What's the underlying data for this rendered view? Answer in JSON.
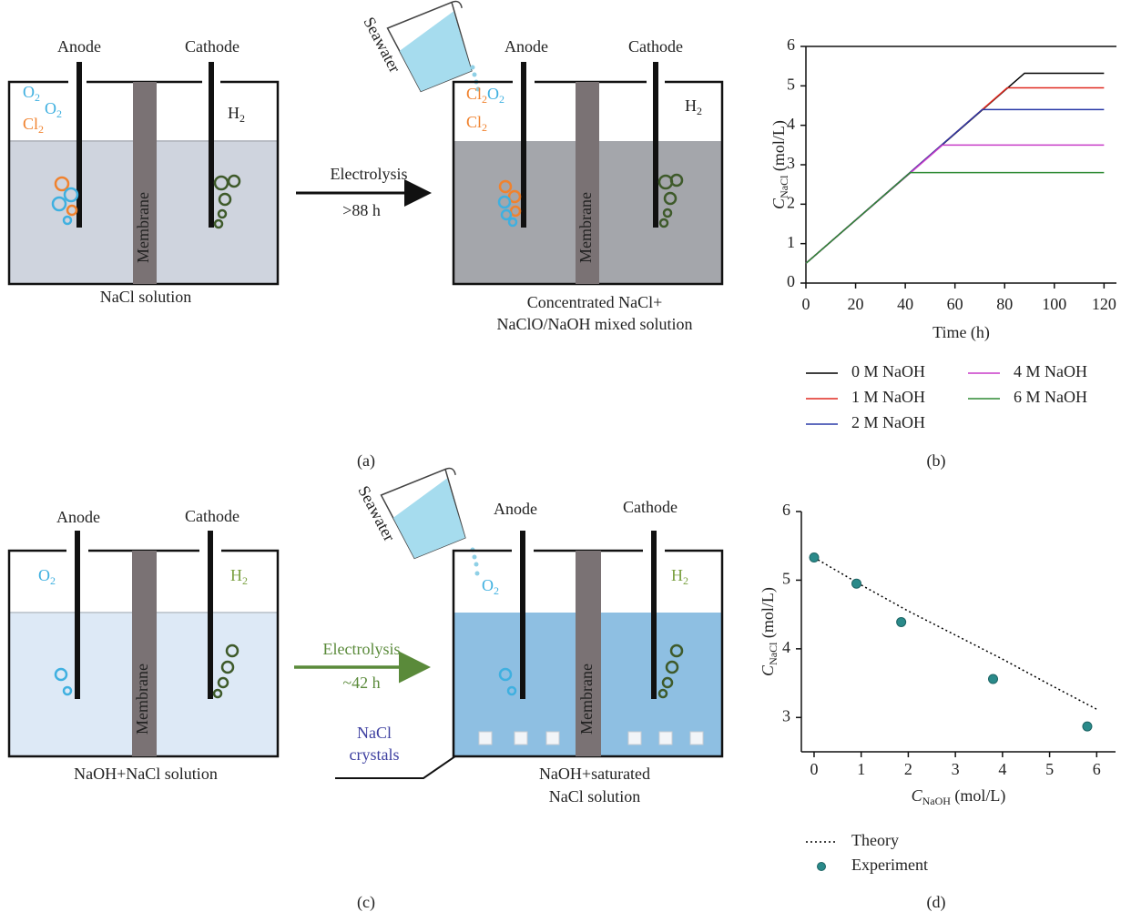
{
  "panel_a": {
    "label": "(a)",
    "cell1": {
      "anode": "Anode",
      "cathode": "Cathode",
      "membrane": "Membrane",
      "o2a": [
        "O",
        "2"
      ],
      "o2b": [
        "O",
        "2"
      ],
      "cl2": [
        "Cl",
        "2"
      ],
      "h2": [
        "H",
        "2"
      ],
      "caption": "NaCl solution"
    },
    "arrow": {
      "top": "Electrolysis",
      "bottom": ">88 h"
    },
    "pitcher": "Seawater",
    "cell2": {
      "anode": "Anode",
      "cathode": "Cathode",
      "membrane": "Membrane",
      "cl2a": [
        "Cl",
        "2"
      ],
      "o2": [
        "O",
        "2"
      ],
      "cl2b": [
        "Cl",
        "2"
      ],
      "h2": [
        "H",
        "2"
      ],
      "caption": [
        "Concentrated NaCl+",
        "NaClO/NaOH mixed solution"
      ]
    }
  },
  "panel_c": {
    "label": "(c)",
    "cell1": {
      "anode": "Anode",
      "cathode": "Cathode",
      "membrane": "Membrane",
      "o2": [
        "O",
        "2"
      ],
      "h2": [
        "H",
        "2"
      ],
      "caption": "NaOH+NaCl solution"
    },
    "arrow": {
      "top": "Electrolysis",
      "bottom": "~42 h"
    },
    "pitcher": "Seawater",
    "crystals": [
      "NaCl",
      "crystals"
    ],
    "cell2": {
      "anode": "Anode",
      "cathode": "Cathode",
      "membrane": "Membrane",
      "o2": [
        "O",
        "2"
      ],
      "h2": [
        "H",
        "2"
      ],
      "caption": [
        "NaOH+saturated",
        "NaCl solution"
      ]
    }
  },
  "chart_data": [
    {
      "type": "line",
      "panel_label": "(b)",
      "xlabel": "Time (h)",
      "ylabel": {
        "main": "C",
        "sub": "NaCl",
        "rest": " (mol/L)"
      },
      "xlim": [
        0,
        125
      ],
      "ylim": [
        0,
        6
      ],
      "xticks": [
        0,
        20,
        40,
        60,
        80,
        100,
        120
      ],
      "yticks": [
        0,
        1,
        2,
        3,
        4,
        5,
        6
      ],
      "top_spine": true,
      "series": [
        {
          "name": "0 M NaOH",
          "color": "#000000",
          "x": [
            0,
            88,
            120
          ],
          "values": [
            0.5,
            5.32,
            5.32
          ]
        },
        {
          "name": "1 M NaOH",
          "color": "#e02a20",
          "x": [
            0,
            81,
            120
          ],
          "values": [
            0.5,
            4.95,
            4.95
          ]
        },
        {
          "name": "2 M NaOH",
          "color": "#2a3aa8",
          "x": [
            0,
            71,
            120
          ],
          "values": [
            0.5,
            4.4,
            4.4
          ]
        },
        {
          "name": "4 M NaOH",
          "color": "#c83cc8",
          "x": [
            0,
            55,
            120
          ],
          "values": [
            0.5,
            3.5,
            3.5
          ]
        },
        {
          "name": "6 M NaOH",
          "color": "#2e8a34",
          "x": [
            0,
            42,
            120
          ],
          "values": [
            0.5,
            2.8,
            2.8
          ]
        }
      ]
    },
    {
      "type": "scatter",
      "panel_label": "(d)",
      "xlabel": {
        "main": "C",
        "sub": "NaOH",
        "rest": " (mol/L)"
      },
      "ylabel": {
        "main": "C",
        "sub": "NaCl",
        "rest": " (mol/L)"
      },
      "xlim": [
        -0.27,
        6.4
      ],
      "ylim": [
        2.5,
        6
      ],
      "xticks": [
        0,
        1,
        2,
        3,
        4,
        5,
        6
      ],
      "yticks": [
        3,
        4,
        5,
        6
      ],
      "top_spine": false,
      "series": [
        {
          "name": "Theory",
          "type": "line",
          "dash": "dotted",
          "color": "#000000",
          "x": [
            0,
            1,
            2,
            3,
            4,
            5,
            6
          ],
          "values": [
            5.33,
            4.93,
            4.55,
            4.2,
            3.85,
            3.48,
            3.12
          ]
        },
        {
          "name": "Experiment",
          "type": "scatter",
          "color": "#2a8a8a",
          "x": [
            0,
            0.9,
            1.85,
            3.8,
            5.8
          ],
          "values": [
            5.33,
            4.95,
            4.39,
            3.56,
            2.87
          ]
        }
      ]
    }
  ]
}
